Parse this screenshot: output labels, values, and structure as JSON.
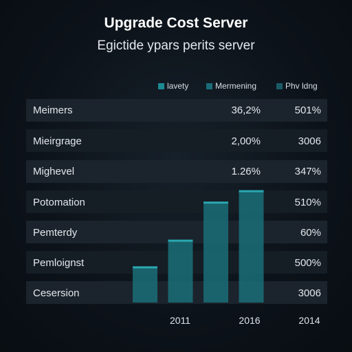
{
  "chart_data": {
    "type": "bar",
    "title": "Upgrade Cost Server",
    "subtitle": "Egictide ypars perits server",
    "legend": {
      "placement": "top-right",
      "entries": [
        {
          "name": "lavety",
          "color": "#1c8a92"
        },
        {
          "name": "Mermening",
          "color": "#1a6d78"
        },
        {
          "name": "Phv ldng",
          "color": "#1a5a66"
        }
      ]
    },
    "rows": [
      {
        "label": "Meimers",
        "v1": "36,2%",
        "v2": "501%"
      },
      {
        "label": "Mieirgrage",
        "v1": "2,00%",
        "v2": "3006"
      },
      {
        "label": "Mighevel",
        "v1": "1.26%",
        "v2": "347%"
      },
      {
        "label": "Potomation",
        "v1": "",
        "v2": "510%"
      },
      {
        "label": "Pemterdy",
        "v1": "",
        "v2": "60%"
      },
      {
        "label": "Pemloignst",
        "v1": "",
        "v2": "500%"
      },
      {
        "label": "Cesersion",
        "v1": "",
        "v2": "3006"
      }
    ],
    "bars": [
      {
        "value": 38
      },
      {
        "value": 66
      },
      {
        "value": 106
      },
      {
        "value": 118
      }
    ],
    "ylim": [
      0,
      130
    ],
    "x_ticks": [
      "2011",
      "2016",
      "2014"
    ],
    "bar_color": "#1a6f78"
  }
}
